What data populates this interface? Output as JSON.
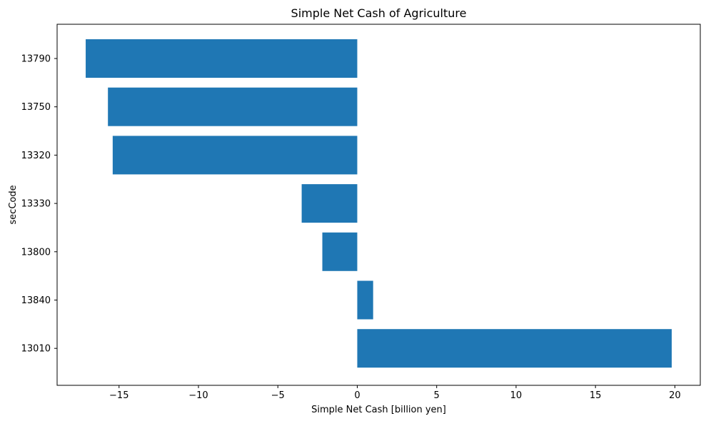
{
  "chart_data": {
    "type": "bar",
    "orientation": "horizontal",
    "title": "Simple Net Cash of Agriculture",
    "xlabel": "Simple Net Cash [billion yen]",
    "ylabel": "secCode",
    "categories": [
      "13790",
      "13750",
      "13320",
      "13330",
      "13800",
      "13840",
      "13010"
    ],
    "values": [
      -17.1,
      -15.7,
      -15.4,
      -3.5,
      -2.2,
      1.0,
      19.8
    ],
    "xlim": [
      -18.9,
      21.6
    ],
    "xticks": [
      -15,
      -10,
      -5,
      0,
      5,
      10,
      15,
      20
    ],
    "xtick_labels": [
      "−15",
      "−10",
      "−5",
      "0",
      "5",
      "10",
      "15",
      "20"
    ],
    "grid": false,
    "legend": "none",
    "bar_color": "#1f77b4"
  }
}
